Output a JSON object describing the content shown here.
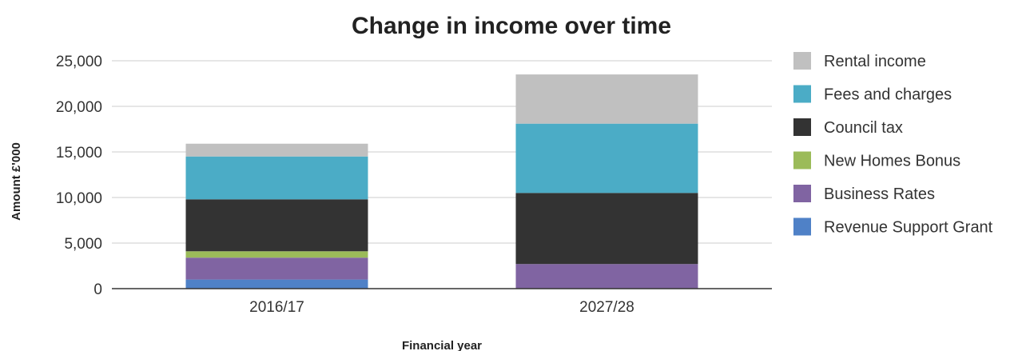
{
  "chart_data": {
    "type": "bar",
    "stacked": true,
    "title": "Change in income over time",
    "xlabel": "Financial year",
    "ylabel": "Amount £'000",
    "categories": [
      "2016/17",
      "2027/28"
    ],
    "ylim": [
      0,
      25000
    ],
    "yticks": [
      0,
      5000,
      10000,
      15000,
      20000,
      25000
    ],
    "ytick_labels": [
      "0",
      "5,000",
      "10,000",
      "15,000",
      "20,000",
      "25,000"
    ],
    "grid": true,
    "legend_position": "right",
    "series": [
      {
        "name": "Revenue Support Grant",
        "color": "#4f81c7",
        "values": [
          1000,
          0
        ]
      },
      {
        "name": "Business Rates",
        "color": "#8064a2",
        "values": [
          2400,
          2700
        ]
      },
      {
        "name": "New Homes Bonus",
        "color": "#9bbb59",
        "values": [
          700,
          0
        ]
      },
      {
        "name": "Council tax",
        "color": "#333333",
        "values": [
          5700,
          7800
        ]
      },
      {
        "name": "Fees and charges",
        "color": "#4bacc6",
        "values": [
          4700,
          7600
        ]
      },
      {
        "name": "Rental income",
        "color": "#c0c0c0",
        "values": [
          1400,
          5400
        ]
      }
    ]
  }
}
